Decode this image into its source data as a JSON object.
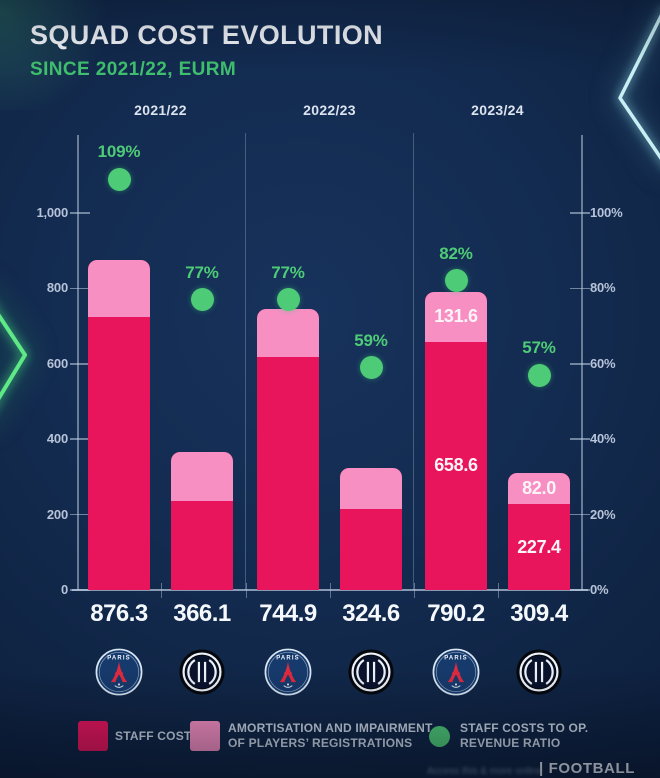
{
  "header": {
    "title": "SQUAD COST EVOLUTION",
    "subtitle": "SINCE 2021/22, EURM"
  },
  "chart_data": {
    "type": "bar",
    "stacked": true,
    "title": "SQUAD COST EVOLUTION",
    "subtitle": "SINCE 2021/22, EURM",
    "unit": "EURM",
    "categories": [
      "2021/22",
      "2022/23",
      "2023/24"
    ],
    "clubs": [
      "Paris Saint-Germain",
      "Inter Milan"
    ],
    "left_axis": {
      "label_values": [
        1000,
        800,
        600,
        400,
        200,
        0
      ],
      "labels": [
        "1,000",
        "800",
        "600",
        "400",
        "200",
        "0"
      ],
      "range": [
        0,
        1000
      ]
    },
    "right_axis": {
      "label_values": [
        100,
        80,
        60,
        40,
        20,
        0
      ],
      "labels": [
        "100%",
        "80%",
        "60%",
        "40%",
        "20%",
        "0%"
      ],
      "range_pct": [
        0,
        100
      ]
    },
    "bars": [
      {
        "season": "2021/22",
        "club": "PSG",
        "total": 876.3,
        "total_label": "876.3",
        "staff": 724,
        "amortisation": 152,
        "split_estimated": true,
        "ratio_pct": 109,
        "ratio_label": "109%"
      },
      {
        "season": "2021/22",
        "club": "INTER",
        "total": 366.1,
        "total_label": "366.1",
        "staff": 237,
        "amortisation": 129,
        "split_estimated": true,
        "ratio_pct": 77,
        "ratio_label": "77%"
      },
      {
        "season": "2022/23",
        "club": "PSG",
        "total": 744.9,
        "total_label": "744.9",
        "staff": 617,
        "amortisation": 128,
        "split_estimated": true,
        "ratio_pct": 77,
        "ratio_label": "77%"
      },
      {
        "season": "2022/23",
        "club": "INTER",
        "total": 324.6,
        "total_label": "324.6",
        "staff": 216,
        "amortisation": 109,
        "split_estimated": true,
        "ratio_pct": 59,
        "ratio_label": "59%"
      },
      {
        "season": "2023/24",
        "club": "PSG",
        "total": 790.2,
        "total_label": "790.2",
        "staff": 658.6,
        "amortisation": 131.6,
        "split_estimated": false,
        "staff_label": "658.6",
        "amortisation_label": "131.6",
        "ratio_pct": 82,
        "ratio_label": "82%"
      },
      {
        "season": "2023/24",
        "club": "INTER",
        "total": 309.4,
        "total_label": "309.4",
        "staff": 227.4,
        "amortisation": 82.0,
        "split_estimated": false,
        "staff_label": "227.4",
        "amortisation_label": "82.0",
        "ratio_pct": 57,
        "ratio_label": "57%"
      }
    ],
    "legend_position": "bottom",
    "grid": false
  },
  "legend": {
    "staff": {
      "label": "STAFF COSTS"
    },
    "amortisation": {
      "line1": "AMORTISATION AND IMPAIRMENT",
      "line2": "OF PLAYERS’ REGISTRATIONS"
    },
    "ratio": {
      "line1": "STAFF COSTS TO OP.",
      "line2": "REVENUE RATIO"
    }
  },
  "footer": {
    "fine_print": "Access this & more online",
    "brand": "| FOOTBALL"
  },
  "colors": {
    "background": "#132b50",
    "staff": "#e8145c",
    "amortisation": "#f78fc3",
    "ratio_green": "#4ecb77",
    "subtitle_green": "#3fbf6d",
    "title_white": "#f4f7fb",
    "axis_text": "#b6c3d8",
    "neon_left": "#5fe886",
    "neon_right": "#c9eff5"
  }
}
